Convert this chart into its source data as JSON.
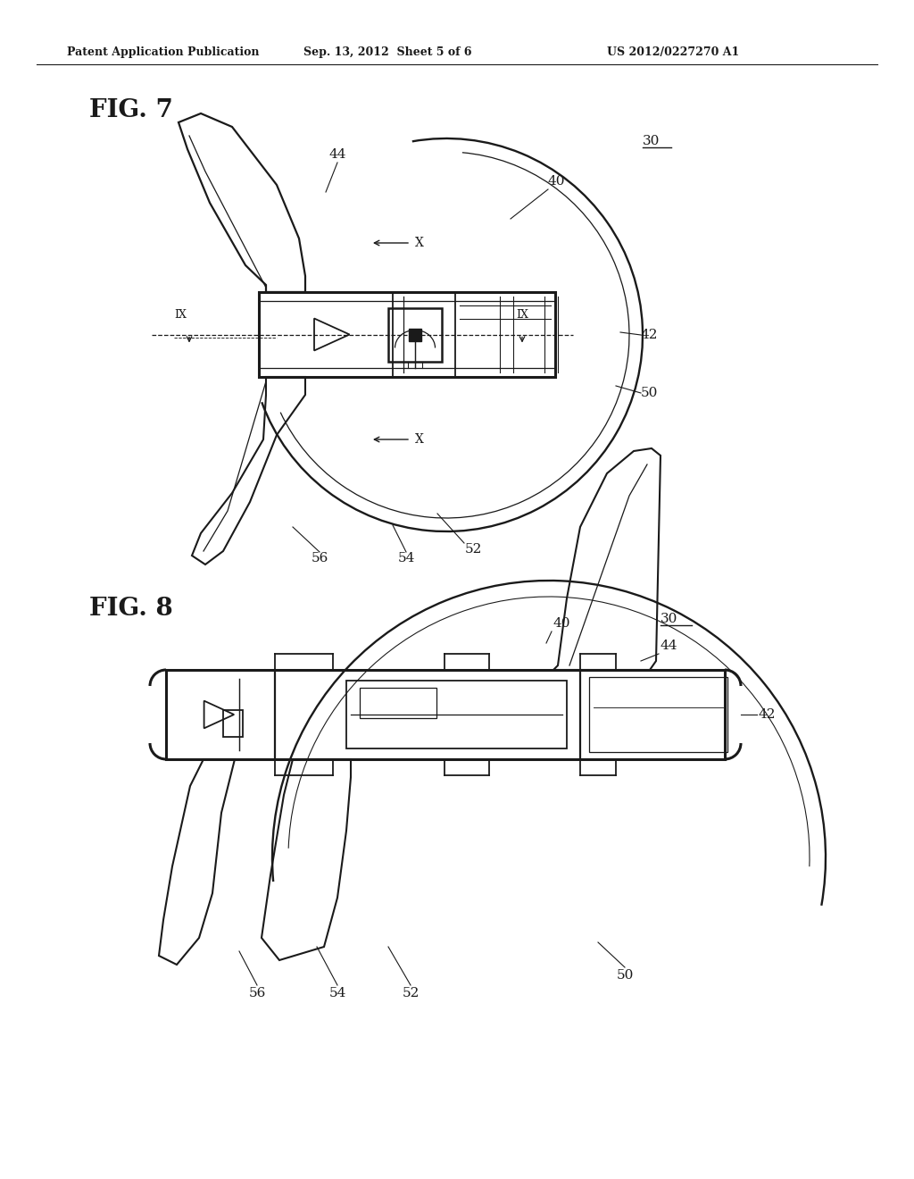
{
  "bg_color": "#ffffff",
  "line_color": "#1a1a1a",
  "lw": 1.3,
  "tlw": 2.2,
  "header_text": "Patent Application Publication",
  "header_date": "Sep. 13, 2012  Sheet 5 of 6",
  "header_patent": "US 2012/0227270 A1",
  "fig7_label": "FIG. 7",
  "fig8_label": "FIG. 8"
}
